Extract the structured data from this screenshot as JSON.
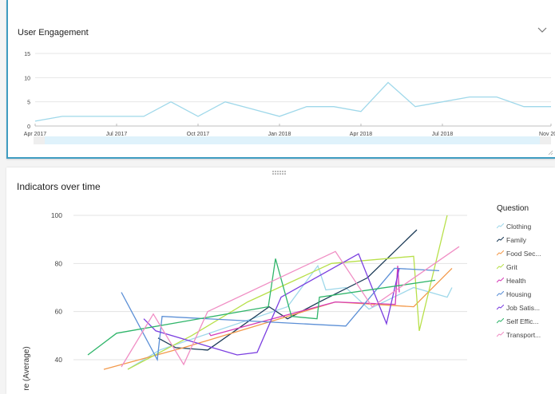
{
  "panels": [
    {
      "title": "User Engagement",
      "collapse_icon": "chevron-down-icon"
    },
    {
      "title": "Indicators over time",
      "drag_handle_icon": "drag-handle-icon"
    }
  ],
  "legend": {
    "title": "Question",
    "items": [
      {
        "label": "Clothing",
        "color": "#9fd8ea"
      },
      {
        "label": "Family",
        "color": "#1c3b57"
      },
      {
        "label": "Food Sec...",
        "color": "#f39a4c"
      },
      {
        "label": "Grit",
        "color": "#b8e04a"
      },
      {
        "label": "Health",
        "color": "#d63bb7"
      },
      {
        "label": "Housing",
        "color": "#5b8fd6"
      },
      {
        "label": "Job Satis...",
        "color": "#7b3fe0"
      },
      {
        "label": "Self Effic...",
        "color": "#2fb56a"
      },
      {
        "label": "Transport...",
        "color": "#f08ec4"
      }
    ]
  },
  "chart_data": [
    {
      "type": "line",
      "title": "User Engagement",
      "xlabel": "",
      "ylabel": "",
      "ylim": [
        0,
        15
      ],
      "yticks": [
        0,
        5,
        10,
        15
      ],
      "xticks": [
        "Apr 2017",
        "Jul 2017",
        "Oct 2017",
        "Jan 2018",
        "Apr 2018",
        "Jul 2018",
        "Nov 2018"
      ],
      "x": [
        "Apr 2017",
        "May 2017",
        "Jun 2017",
        "Jul 2017",
        "Aug 2017",
        "Sep 2017",
        "Oct 2017",
        "Nov 2017",
        "Dec 2017",
        "Jan 2018",
        "Feb 2018",
        "Mar 2018",
        "Apr 2018",
        "May 2018",
        "Jun 2018",
        "Jul 2018",
        "Aug 2018",
        "Sep 2018",
        "Oct 2018",
        "Nov 2018"
      ],
      "series": [
        {
          "name": "User Engagement",
          "color": "#9fd8ea",
          "values": [
            1,
            2,
            2,
            2,
            2,
            5,
            2,
            5,
            3.5,
            2,
            4,
            4,
            3,
            9,
            4,
            5,
            6,
            6,
            4,
            4
          ]
        }
      ],
      "grid": true,
      "range_slider": true
    },
    {
      "type": "line",
      "title": "Indicators over time",
      "xlabel": "",
      "ylabel": "re (Average)",
      "ylim": [
        35,
        100
      ],
      "yticks": [
        40,
        60,
        80,
        100
      ],
      "grid": true,
      "legend_position": "right",
      "series": [
        {
          "name": "Clothing",
          "values": [
            [
              160,
              36
            ],
            [
              200,
              44
            ],
            [
              360,
              62
            ],
            [
              398,
              79
            ],
            [
              408,
              69
            ],
            [
              433,
              70
            ],
            [
              462,
              61
            ],
            [
              518,
              70
            ],
            [
              560,
              66
            ],
            [
              566,
              70
            ]
          ]
        },
        {
          "name": "Family",
          "values": [
            [
              198,
              49
            ],
            [
              220,
              45
            ],
            [
              260,
              44
            ],
            [
              337,
              62
            ],
            [
              360,
              57
            ],
            [
              400,
              64
            ],
            [
              460,
              74
            ],
            [
              522,
              94
            ]
          ]
        },
        {
          "name": "Food Sec...",
          "values": [
            [
              130,
              36
            ],
            [
              230,
              45
            ],
            [
              360,
              58
            ],
            [
              420,
              64
            ],
            [
              518,
              62
            ],
            [
              566,
              78
            ]
          ]
        },
        {
          "name": "Grit",
          "values": [
            [
              160,
              36
            ],
            [
              240,
              50
            ],
            [
              310,
              64
            ],
            [
              415,
              80
            ],
            [
              518,
              83
            ],
            [
              525,
              52
            ],
            [
              560,
              100
            ]
          ]
        },
        {
          "name": "Health",
          "values": [
            [
              262,
              51
            ],
            [
              264,
              50
            ],
            [
              330,
              56
            ],
            [
              420,
              64
            ],
            [
              495,
              63
            ],
            [
              498,
              79
            ],
            [
              500,
              68
            ]
          ]
        },
        {
          "name": "Housing",
          "values": [
            [
              152,
              68
            ],
            [
              197,
              40
            ],
            [
              203,
              58
            ],
            [
              433,
              54
            ],
            [
              494,
              78
            ],
            [
              550,
              77
            ]
          ]
        },
        {
          "name": "Job Satis...",
          "values": [
            [
              180,
              57
            ],
            [
              195,
              52
            ],
            [
              297,
              42
            ],
            [
              322,
              43
            ],
            [
              352,
              66
            ],
            [
              449,
              84
            ],
            [
              484,
              55
            ],
            [
              500,
              78
            ]
          ]
        },
        {
          "name": "Self Effic...",
          "values": [
            [
              110,
              42
            ],
            [
              146,
              51
            ],
            [
              336,
              62
            ],
            [
              345,
              82
            ],
            [
              365,
              58
            ],
            [
              397,
              57
            ],
            [
              400,
              66
            ],
            [
              545,
              73
            ]
          ]
        },
        {
          "name": "Transport...",
          "values": [
            [
              152,
              37
            ],
            [
              192,
              59
            ],
            [
              230,
              38
            ],
            [
              260,
              60
            ],
            [
              420,
              85
            ],
            [
              466,
              62
            ],
            [
              575,
              87
            ]
          ]
        }
      ]
    }
  ],
  "engagement_axis": {
    "y_labels": [
      "15",
      "10",
      "5",
      "0"
    ],
    "x_labels": [
      "Apr 2017",
      "Jul 2017",
      "Oct 2017",
      "Jan 2018",
      "Apr 2018",
      "Jul 2018",
      "Nov 2018"
    ]
  },
  "indicators_axis": {
    "y_labels": [
      "100",
      "80",
      "60",
      "40"
    ],
    "y_title": "re (Average)"
  }
}
